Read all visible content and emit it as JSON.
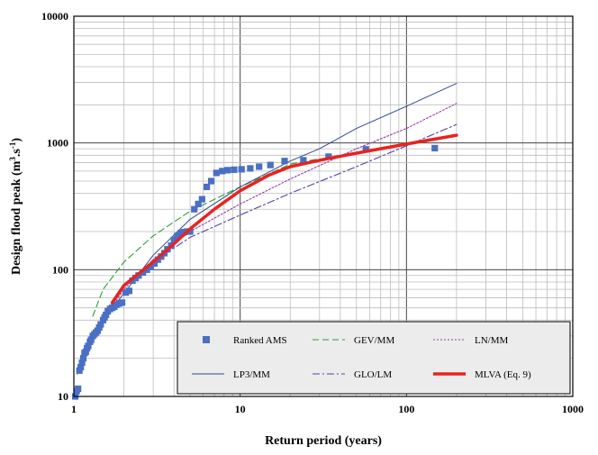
{
  "chart_data": {
    "type": "line",
    "xlabel": "Return period (years)",
    "ylabel_main": "Design flood peak (m",
    "ylabel_sup1": "3",
    "ylabel_mid": ".s",
    "ylabel_sup2": "-1",
    "ylabel_end": ")",
    "x_scale": "log",
    "y_scale": "log",
    "xlim": [
      1,
      1000
    ],
    "ylim": [
      10,
      10000
    ],
    "x_ticks": [
      1,
      10,
      100,
      1000
    ],
    "x_tick_labels": [
      "1",
      "10",
      "100",
      "1000"
    ],
    "y_ticks": [
      10,
      100,
      1000,
      10000
    ],
    "y_tick_labels": [
      "10",
      "100",
      "1000",
      "10000"
    ],
    "grid": true,
    "legend_placement": "bottom-right",
    "legend": [
      {
        "label": "Ranked AMS",
        "key": "ams"
      },
      {
        "label": "GEV/MM",
        "key": "gev"
      },
      {
        "label": "LN/MM",
        "key": "ln"
      },
      {
        "label": "LP3/MM",
        "key": "lp3"
      },
      {
        "label": "GLO/LM",
        "key": "glo"
      },
      {
        "label": "MLVA (Eq. 9)",
        "key": "mlva"
      }
    ],
    "series": [
      {
        "key": "ams",
        "name": "Ranked AMS",
        "style": "marker",
        "color": "#4a6fc4",
        "points": [
          [
            1.02,
            10
          ],
          [
            1.04,
            11
          ],
          [
            1.06,
            11.5
          ],
          [
            1.08,
            16
          ],
          [
            1.1,
            17
          ],
          [
            1.12,
            18.5
          ],
          [
            1.14,
            20
          ],
          [
            1.16,
            22
          ],
          [
            1.18,
            22.5
          ],
          [
            1.2,
            24
          ],
          [
            1.22,
            25
          ],
          [
            1.25,
            27
          ],
          [
            1.27,
            28
          ],
          [
            1.3,
            30
          ],
          [
            1.33,
            31
          ],
          [
            1.36,
            32
          ],
          [
            1.39,
            33
          ],
          [
            1.42,
            35
          ],
          [
            1.45,
            37
          ],
          [
            1.5,
            40
          ],
          [
            1.53,
            42
          ],
          [
            1.56,
            44
          ],
          [
            1.6,
            47
          ],
          [
            1.65,
            49
          ],
          [
            1.7,
            50
          ],
          [
            1.75,
            51
          ],
          [
            1.8,
            53
          ],
          [
            1.87,
            54
          ],
          [
            1.95,
            55
          ],
          [
            2.05,
            66
          ],
          [
            2.15,
            68
          ],
          [
            2.25,
            82
          ],
          [
            2.35,
            86
          ],
          [
            2.45,
            90
          ],
          [
            2.6,
            95
          ],
          [
            2.75,
            100
          ],
          [
            2.9,
            105
          ],
          [
            3.05,
            112
          ],
          [
            3.2,
            120
          ],
          [
            3.35,
            127
          ],
          [
            3.5,
            135
          ],
          [
            3.65,
            145
          ],
          [
            3.85,
            155
          ],
          [
            4.0,
            172
          ],
          [
            4.2,
            185
          ],
          [
            4.4,
            195
          ],
          [
            4.6,
            198
          ],
          [
            4.8,
            200
          ],
          [
            5.0,
            200
          ],
          [
            5.3,
            300
          ],
          [
            5.6,
            330
          ],
          [
            5.9,
            360
          ],
          [
            6.3,
            450
          ],
          [
            6.7,
            500
          ],
          [
            7.2,
            580
          ],
          [
            7.8,
            600
          ],
          [
            8.4,
            610
          ],
          [
            9.2,
            615
          ],
          [
            10.2,
            620
          ],
          [
            11.5,
            630
          ],
          [
            13,
            650
          ],
          [
            15.2,
            670
          ],
          [
            18.5,
            720
          ],
          [
            24,
            730
          ],
          [
            34,
            780
          ],
          [
            57,
            890
          ],
          [
            148,
            910
          ]
        ]
      },
      {
        "key": "gev",
        "name": "GEV/MM",
        "style": "dash",
        "color": "#2e9a3b",
        "points": [
          [
            1.3,
            43
          ],
          [
            1.5,
            70
          ],
          [
            2,
            115
          ],
          [
            3,
            185
          ],
          [
            5,
            290
          ],
          [
            10,
            450
          ],
          [
            20,
            680
          ],
          [
            30,
            750
          ]
        ]
      },
      {
        "key": "ln",
        "name": "LN/MM",
        "style": "dot",
        "color": "#9b3da6",
        "points": [
          [
            1.4,
            35
          ],
          [
            2,
            70
          ],
          [
            3,
            120
          ],
          [
            5,
            200
          ],
          [
            10,
            330
          ],
          [
            20,
            520
          ],
          [
            50,
            900
          ],
          [
            100,
            1300
          ],
          [
            200,
            2050
          ]
        ]
      },
      {
        "key": "lp3",
        "name": "LP3/MM",
        "style": "solid-thin",
        "color": "#2f4a8e",
        "points": [
          [
            1.05,
            15
          ],
          [
            1.3,
            28
          ],
          [
            1.6,
            45
          ],
          [
            2,
            65
          ],
          [
            3,
            130
          ],
          [
            5,
            250
          ],
          [
            10,
            450
          ],
          [
            20,
            720
          ],
          [
            30,
            900
          ],
          [
            50,
            1300
          ],
          [
            100,
            1950
          ],
          [
            200,
            2950
          ]
        ]
      },
      {
        "key": "glo",
        "name": "GLO/LM",
        "style": "dashdot",
        "color": "#5a3fa8",
        "points": [
          [
            1.7,
            55
          ],
          [
            2,
            75
          ],
          [
            3,
            115
          ],
          [
            5,
            180
          ],
          [
            10,
            270
          ],
          [
            20,
            400
          ],
          [
            50,
            650
          ],
          [
            100,
            950
          ],
          [
            200,
            1400
          ]
        ]
      },
      {
        "key": "mlva",
        "name": "MLVA (Eq. 9)",
        "style": "solid-thick",
        "color": "#e8231f",
        "points": [
          [
            1.7,
            55
          ],
          [
            2,
            75
          ],
          [
            2.5,
            95
          ],
          [
            3,
            115
          ],
          [
            4,
            160
          ],
          [
            5,
            210
          ],
          [
            7,
            300
          ],
          [
            10,
            420
          ],
          [
            15,
            560
          ],
          [
            20,
            650
          ],
          [
            30,
            730
          ],
          [
            50,
            830
          ],
          [
            100,
            980
          ],
          [
            200,
            1150
          ]
        ]
      }
    ]
  }
}
